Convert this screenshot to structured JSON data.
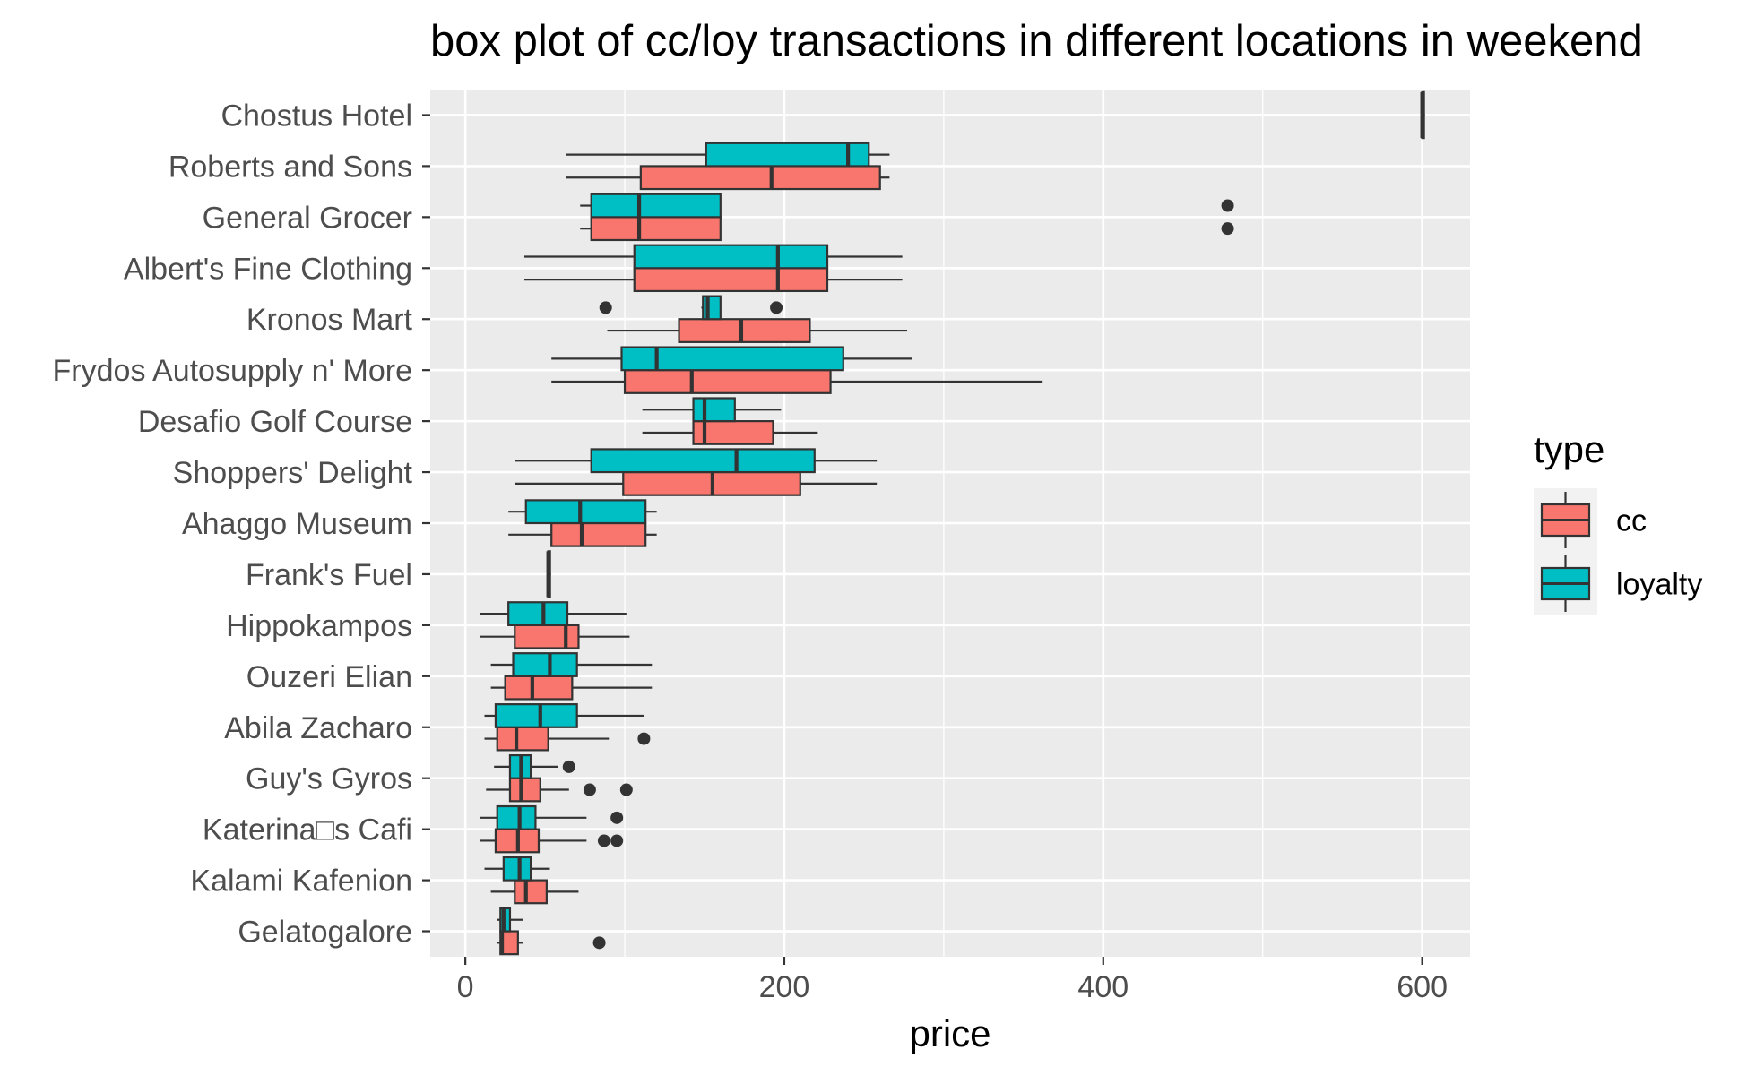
{
  "chart_data": {
    "type": "boxplot",
    "title": "box plot of cc/loy transactions in different locations in weekend",
    "xlabel": "price",
    "ylabel": "",
    "xlim": [
      -22,
      630
    ],
    "xticks": [
      0,
      200,
      400,
      600
    ],
    "grid": true,
    "legend": {
      "title": "type",
      "placement": "right",
      "entries": [
        {
          "name": "cc",
          "color": "#F8766D"
        },
        {
          "name": "loyalty",
          "color": "#00BFC4"
        }
      ]
    },
    "categories": [
      "Chostus Hotel",
      "Roberts and Sons",
      "General Grocer",
      "Albert's Fine Clothing",
      "Kronos Mart",
      "Frydos Autosupply n' More",
      "Desafio Golf Course",
      "Shoppers' Delight",
      "Ahaggo Museum",
      "Frank's Fuel",
      "Hippokampos",
      "Ouzeri Elian",
      "Abila Zacharo",
      "Guy's Gyros",
      "Katerina□s Cafi",
      "Kalami Kafenion",
      "Gelatogalore"
    ],
    "series": [
      {
        "name": "cc",
        "color": "#F8766D",
        "boxes": [
          {
            "category": "Chostus Hotel",
            "min": 600,
            "q1": 600,
            "median": 600,
            "q3": 600,
            "max": 600,
            "outliers": []
          },
          {
            "category": "Roberts and Sons",
            "min": 63,
            "q1": 110,
            "median": 192,
            "q3": 260,
            "max": 266,
            "outliers": []
          },
          {
            "category": "General Grocer",
            "min": 72,
            "q1": 79,
            "median": 109,
            "q3": 160,
            "max": 160,
            "outliers": [
              478
            ]
          },
          {
            "category": "Albert's Fine Clothing",
            "min": 37,
            "q1": 106,
            "median": 196,
            "q3": 227,
            "max": 274,
            "outliers": []
          },
          {
            "category": "Kronos Mart",
            "min": 89,
            "q1": 134,
            "median": 173,
            "q3": 216,
            "max": 277,
            "outliers": []
          },
          {
            "category": "Frydos Autosupply n' More",
            "min": 54,
            "q1": 100,
            "median": 142,
            "q3": 229,
            "max": 362,
            "outliers": []
          },
          {
            "category": "Desafio Golf Course",
            "min": 111,
            "q1": 143,
            "median": 150,
            "q3": 193,
            "max": 221,
            "outliers": []
          },
          {
            "category": "Shoppers' Delight",
            "min": 31,
            "q1": 99,
            "median": 155,
            "q3": 210,
            "max": 258,
            "outliers": []
          },
          {
            "category": "Ahaggo Museum",
            "min": 27,
            "q1": 54,
            "median": 73,
            "q3": 113,
            "max": 120,
            "outliers": []
          },
          {
            "category": "Frank's Fuel",
            "min": 52,
            "q1": 52,
            "median": 52,
            "q3": 53,
            "max": 53,
            "outliers": []
          },
          {
            "category": "Hippokampos",
            "min": 9,
            "q1": 31,
            "median": 63,
            "q3": 71,
            "max": 103,
            "outliers": []
          },
          {
            "category": "Ouzeri Elian",
            "min": 16,
            "q1": 25,
            "median": 42,
            "q3": 67,
            "max": 117,
            "outliers": []
          },
          {
            "category": "Abila Zacharo",
            "min": 12,
            "q1": 20,
            "median": 32,
            "q3": 52,
            "max": 90,
            "outliers": [
              112
            ]
          },
          {
            "category": "Guy's Gyros",
            "min": 13,
            "q1": 28,
            "median": 35,
            "q3": 47,
            "max": 65,
            "outliers": [
              78,
              101
            ]
          },
          {
            "category": "Katerina□s Cafi",
            "min": 9,
            "q1": 19,
            "median": 33,
            "q3": 46,
            "max": 76,
            "outliers": [
              87,
              95
            ]
          },
          {
            "category": "Kalami Kafenion",
            "min": 16,
            "q1": 31,
            "median": 38,
            "q3": 51,
            "max": 71,
            "outliers": []
          },
          {
            "category": "Gelatogalore",
            "min": 20,
            "q1": 22,
            "median": 23,
            "q3": 33,
            "max": 36,
            "outliers": [
              84
            ]
          }
        ]
      },
      {
        "name": "loyalty",
        "color": "#00BFC4",
        "boxes": [
          {
            "category": "Chostus Hotel",
            "min": 600,
            "q1": 600,
            "median": 600,
            "q3": 600,
            "max": 600,
            "outliers": []
          },
          {
            "category": "Roberts and Sons",
            "min": 63,
            "q1": 151,
            "median": 240,
            "q3": 253,
            "max": 266,
            "outliers": []
          },
          {
            "category": "General Grocer",
            "min": 72,
            "q1": 79,
            "median": 109,
            "q3": 160,
            "max": 160,
            "outliers": [
              478
            ]
          },
          {
            "category": "Albert's Fine Clothing",
            "min": 37,
            "q1": 106,
            "median": 196,
            "q3": 227,
            "max": 274,
            "outliers": []
          },
          {
            "category": "Kronos Mart",
            "min": 148,
            "q1": 149,
            "median": 152,
            "q3": 160,
            "max": 160,
            "outliers": [
              88,
              195
            ]
          },
          {
            "category": "Frydos Autosupply n' More",
            "min": 54,
            "q1": 98,
            "median": 120,
            "q3": 237,
            "max": 280,
            "outliers": []
          },
          {
            "category": "Desafio Golf Course",
            "min": 111,
            "q1": 143,
            "median": 150,
            "q3": 169,
            "max": 198,
            "outliers": []
          },
          {
            "category": "Shoppers' Delight",
            "min": 31,
            "q1": 79,
            "median": 170,
            "q3": 219,
            "max": 258,
            "outliers": []
          },
          {
            "category": "Ahaggo Museum",
            "min": 27,
            "q1": 38,
            "median": 72,
            "q3": 113,
            "max": 120,
            "outliers": []
          },
          {
            "category": "Frank's Fuel",
            "min": 52,
            "q1": 52,
            "median": 52,
            "q3": 53,
            "max": 53,
            "outliers": []
          },
          {
            "category": "Hippokampos",
            "min": 9,
            "q1": 27,
            "median": 49,
            "q3": 64,
            "max": 101,
            "outliers": []
          },
          {
            "category": "Ouzeri Elian",
            "min": 16,
            "q1": 30,
            "median": 53,
            "q3": 70,
            "max": 117,
            "outliers": []
          },
          {
            "category": "Abila Zacharo",
            "min": 12,
            "q1": 19,
            "median": 47,
            "q3": 70,
            "max": 112,
            "outliers": []
          },
          {
            "category": "Guy's Gyros",
            "min": 18,
            "q1": 28,
            "median": 35,
            "q3": 41,
            "max": 58,
            "outliers": [
              65
            ]
          },
          {
            "category": "Katerina□s Cafi",
            "min": 9,
            "q1": 20,
            "median": 34,
            "q3": 44,
            "max": 76,
            "outliers": [
              95
            ]
          },
          {
            "category": "Kalami Kafenion",
            "min": 12,
            "q1": 24,
            "median": 34,
            "q3": 41,
            "max": 53,
            "outliers": []
          },
          {
            "category": "Gelatogalore",
            "min": 20,
            "q1": 22,
            "median": 24,
            "q3": 28,
            "max": 36,
            "outliers": []
          }
        ]
      }
    ]
  }
}
